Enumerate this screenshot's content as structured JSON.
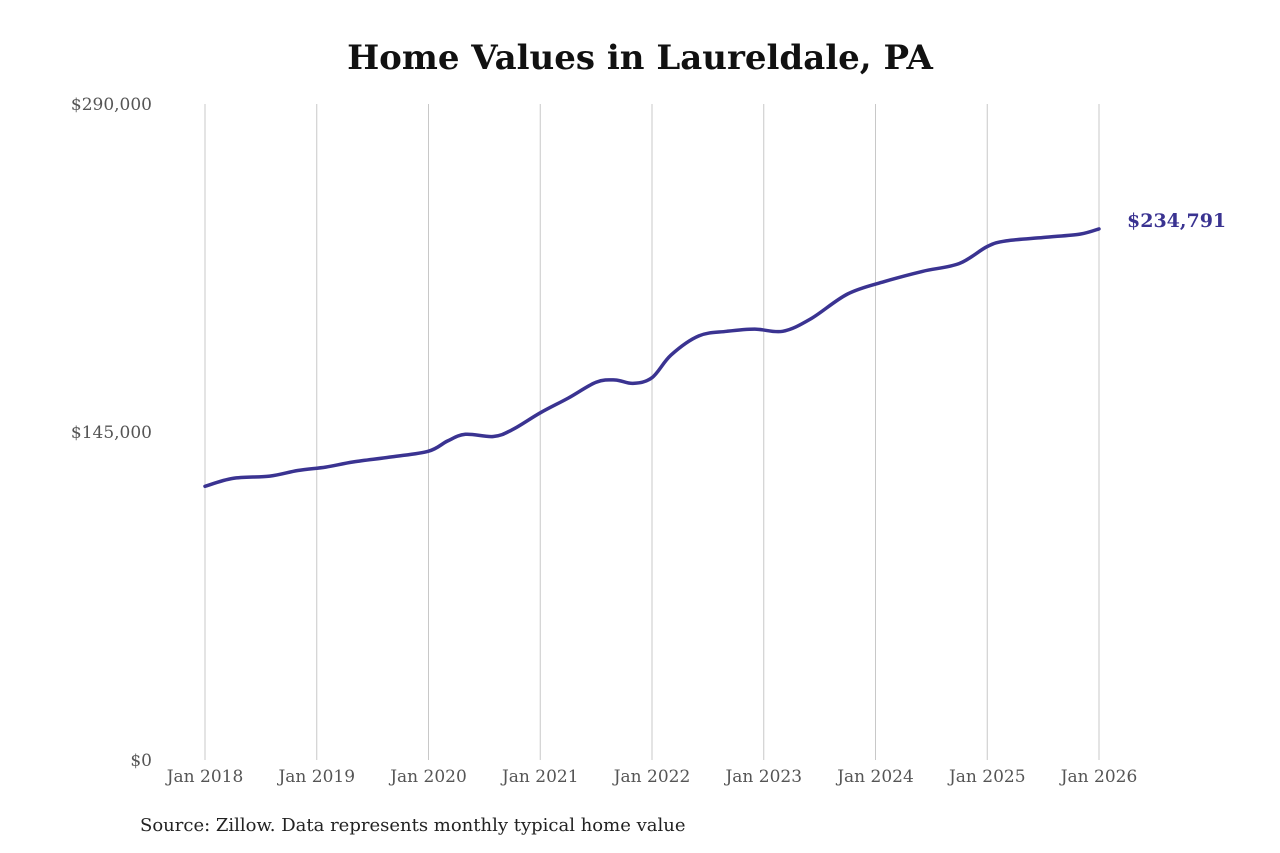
{
  "chart_data": {
    "type": "line",
    "title": "Home Values in Laureldale, PA",
    "source": "Source: Zillow. Data represents monthly typical home value",
    "xlabel": "",
    "ylabel": "",
    "ylim": [
      0,
      290000
    ],
    "y_ticks": [
      {
        "value": 0,
        "label": "$0"
      },
      {
        "value": 145000,
        "label": "$145,000"
      },
      {
        "value": 290000,
        "label": "$290,000"
      }
    ],
    "x_ticks": [
      {
        "value": 2018.0,
        "label": "Jan 2018"
      },
      {
        "value": 2019.0,
        "label": "Jan 2019"
      },
      {
        "value": 2020.0,
        "label": "Jan 2020"
      },
      {
        "value": 2021.0,
        "label": "Jan 2021"
      },
      {
        "value": 2022.0,
        "label": "Jan 2022"
      },
      {
        "value": 2023.0,
        "label": "Jan 2023"
      },
      {
        "value": 2024.0,
        "label": "Jan 2024"
      },
      {
        "value": 2025.0,
        "label": "Jan 2025"
      },
      {
        "value": 2026.0,
        "label": "Jan 2026"
      }
    ],
    "xlim": [
      2018.0,
      2026.0
    ],
    "grid": "vertical",
    "series": [
      {
        "name": "Typical home value",
        "color": "#3a3391",
        "end_label": "$234,791",
        "points": [
          [
            2018.0,
            121000
          ],
          [
            2018.25,
            124500
          ],
          [
            2018.58,
            125500
          ],
          [
            2018.83,
            128000
          ],
          [
            2019.08,
            129500
          ],
          [
            2019.33,
            131800
          ],
          [
            2019.67,
            134000
          ],
          [
            2020.0,
            136500
          ],
          [
            2020.17,
            141000
          ],
          [
            2020.33,
            144000
          ],
          [
            2020.58,
            143000
          ],
          [
            2020.75,
            146000
          ],
          [
            2021.0,
            153500
          ],
          [
            2021.25,
            160000
          ],
          [
            2021.5,
            167000
          ],
          [
            2021.67,
            168000
          ],
          [
            2021.83,
            166500
          ],
          [
            2022.0,
            169000
          ],
          [
            2022.17,
            179000
          ],
          [
            2022.42,
            187500
          ],
          [
            2022.67,
            189500
          ],
          [
            2022.92,
            190500
          ],
          [
            2023.17,
            189500
          ],
          [
            2023.42,
            195000
          ],
          [
            2023.75,
            206000
          ],
          [
            2024.08,
            211500
          ],
          [
            2024.42,
            216000
          ],
          [
            2024.75,
            219500
          ],
          [
            2025.0,
            227000
          ],
          [
            2025.17,
            229500
          ],
          [
            2025.5,
            231000
          ],
          [
            2025.83,
            232500
          ],
          [
            2026.0,
            234791
          ]
        ]
      }
    ]
  }
}
